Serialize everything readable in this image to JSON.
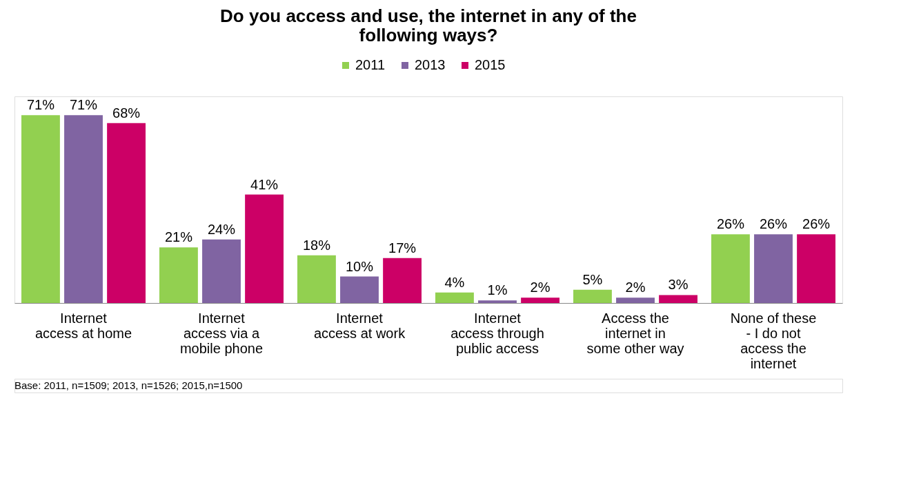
{
  "chart_data": {
    "type": "bar",
    "title": "Do you access and use, the internet in any of the following ways?",
    "categories": [
      "Internet access at home",
      "Internet access via a mobile phone",
      "Internet access at work",
      "Internet access through public access",
      "Access the internet in some other way",
      "None of these - I do not access the internet"
    ],
    "series": [
      {
        "name": "2011",
        "color": "#92d050",
        "values": [
          71,
          21,
          18,
          4,
          5,
          26
        ],
        "value_labels": [
          "71%",
          "21%",
          "18%",
          "4%",
          "5%",
          "26%"
        ]
      },
      {
        "name": "2013",
        "color": "#8064a2",
        "values": [
          71,
          24,
          10,
          1,
          2,
          26
        ],
        "value_labels": [
          "71%",
          "24%",
          "10%",
          "1%",
          "2%",
          "26%"
        ]
      },
      {
        "name": "2015",
        "color": "#cc0066",
        "values": [
          68,
          41,
          17,
          2,
          3,
          26
        ],
        "value_labels": [
          "68%",
          "41%",
          "17%",
          "2%",
          "3%",
          "26%"
        ]
      }
    ],
    "legend": "top",
    "grid": false,
    "annotations": [
      "Base: 2011, n=1509; 2013, n=1526; 2015,n=1500"
    ]
  }
}
